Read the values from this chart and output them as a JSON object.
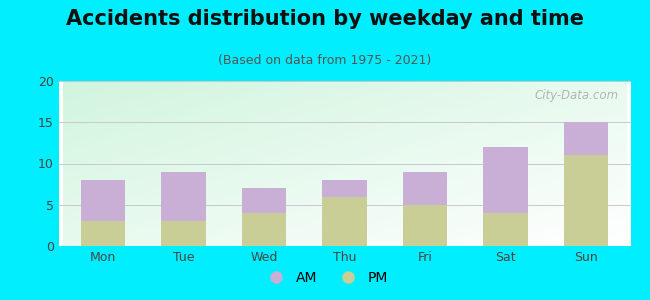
{
  "title": "Accidents distribution by weekday and time",
  "subtitle": "(Based on data from 1975 - 2021)",
  "categories": [
    "Mon",
    "Tue",
    "Wed",
    "Thu",
    "Fri",
    "Sat",
    "Sun"
  ],
  "am_values": [
    5,
    6,
    3,
    2,
    4,
    8,
    4
  ],
  "pm_values": [
    3,
    3,
    4,
    6,
    5,
    4,
    11
  ],
  "am_color": "#c9aed6",
  "pm_color": "#c8ce96",
  "background_outer": "#00eeff",
  "ylim": [
    0,
    20
  ],
  "yticks": [
    0,
    5,
    10,
    15,
    20
  ],
  "grid_color": "#c8c8c8",
  "bar_width": 0.55,
  "title_fontsize": 15,
  "subtitle_fontsize": 9,
  "tick_fontsize": 9,
  "legend_fontsize": 10,
  "watermark_text": "City-Data.com",
  "watermark_color": "#aaaaaa",
  "title_color": "#111111",
  "subtitle_color": "#555555",
  "tick_color": "#444444"
}
